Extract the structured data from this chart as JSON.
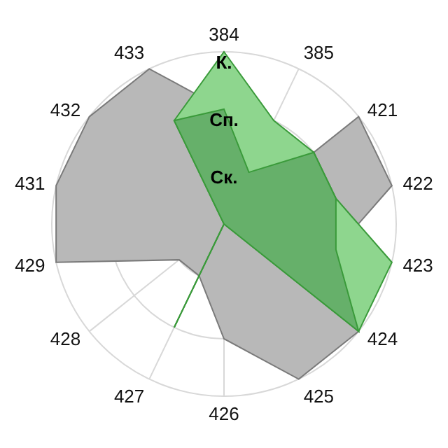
{
  "chart_data": {
    "type": "radar",
    "categories": [
      "384",
      "385",
      "421",
      "422",
      "423",
      "424",
      "425",
      "426",
      "427",
      "428",
      "429",
      "431",
      "432",
      "433"
    ],
    "series": [
      {
        "color": "#b8b8b8",
        "values": [
          2,
          0,
          3,
          3,
          2,
          3,
          3,
          2,
          1,
          1,
          3,
          3,
          3,
          3
        ]
      },
      {
        "color": "#8ed68e",
        "values": [
          3,
          2,
          2,
          2,
          3,
          3,
          0,
          0,
          2,
          0,
          0,
          0,
          0,
          2
        ]
      },
      {
        "color": "#66b06a",
        "values": [
          2,
          1,
          2,
          2,
          2,
          3,
          0,
          0,
          2,
          0,
          0,
          0,
          0,
          2
        ]
      }
    ],
    "ylim": [
      0,
      3
    ],
    "yticks": [
      {
        "value": 1,
        "label": "Ск."
      },
      {
        "value": 2,
        "label": "Сп."
      },
      {
        "value": 3,
        "label": "К."
      }
    ],
    "grid": true
  }
}
